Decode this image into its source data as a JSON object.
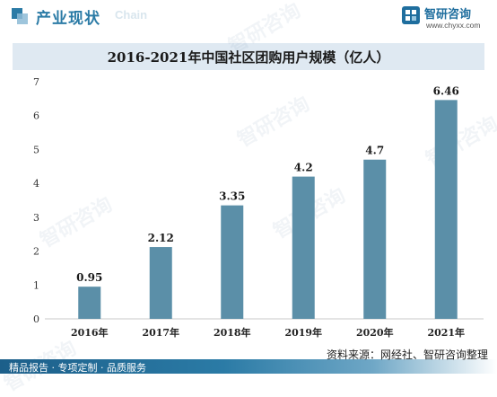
{
  "header": {
    "title": "产业现状",
    "subtitle": "Chain",
    "brand_name": "智研咨询",
    "brand_url": "www.chyxx.com"
  },
  "watermark": "智研咨询",
  "colors": {
    "bar": "#5b8fa8",
    "accent": "#2b7ba6",
    "title_band": "#dfe9f2"
  },
  "chart_data": {
    "type": "bar",
    "title": "2016-2021年中国社区团购用户规模（亿人）",
    "categories": [
      "2016年",
      "2017年",
      "2018年",
      "2019年",
      "2020年",
      "2021年"
    ],
    "values": [
      0.95,
      2.12,
      3.35,
      4.2,
      4.7,
      6.46
    ],
    "data_labels": [
      "0.95",
      "2.12",
      "3.35",
      "4.2",
      "4.7",
      "6.46"
    ],
    "ylim": [
      0,
      7
    ],
    "yticks": [
      "0",
      "1",
      "2",
      "3",
      "4",
      "5",
      "6",
      "7"
    ],
    "grid": false
  },
  "footer": {
    "source": "资料来源：网经社、智研咨询整理",
    "tagline": "精品报告 · 专项定制 · 品质服务"
  }
}
